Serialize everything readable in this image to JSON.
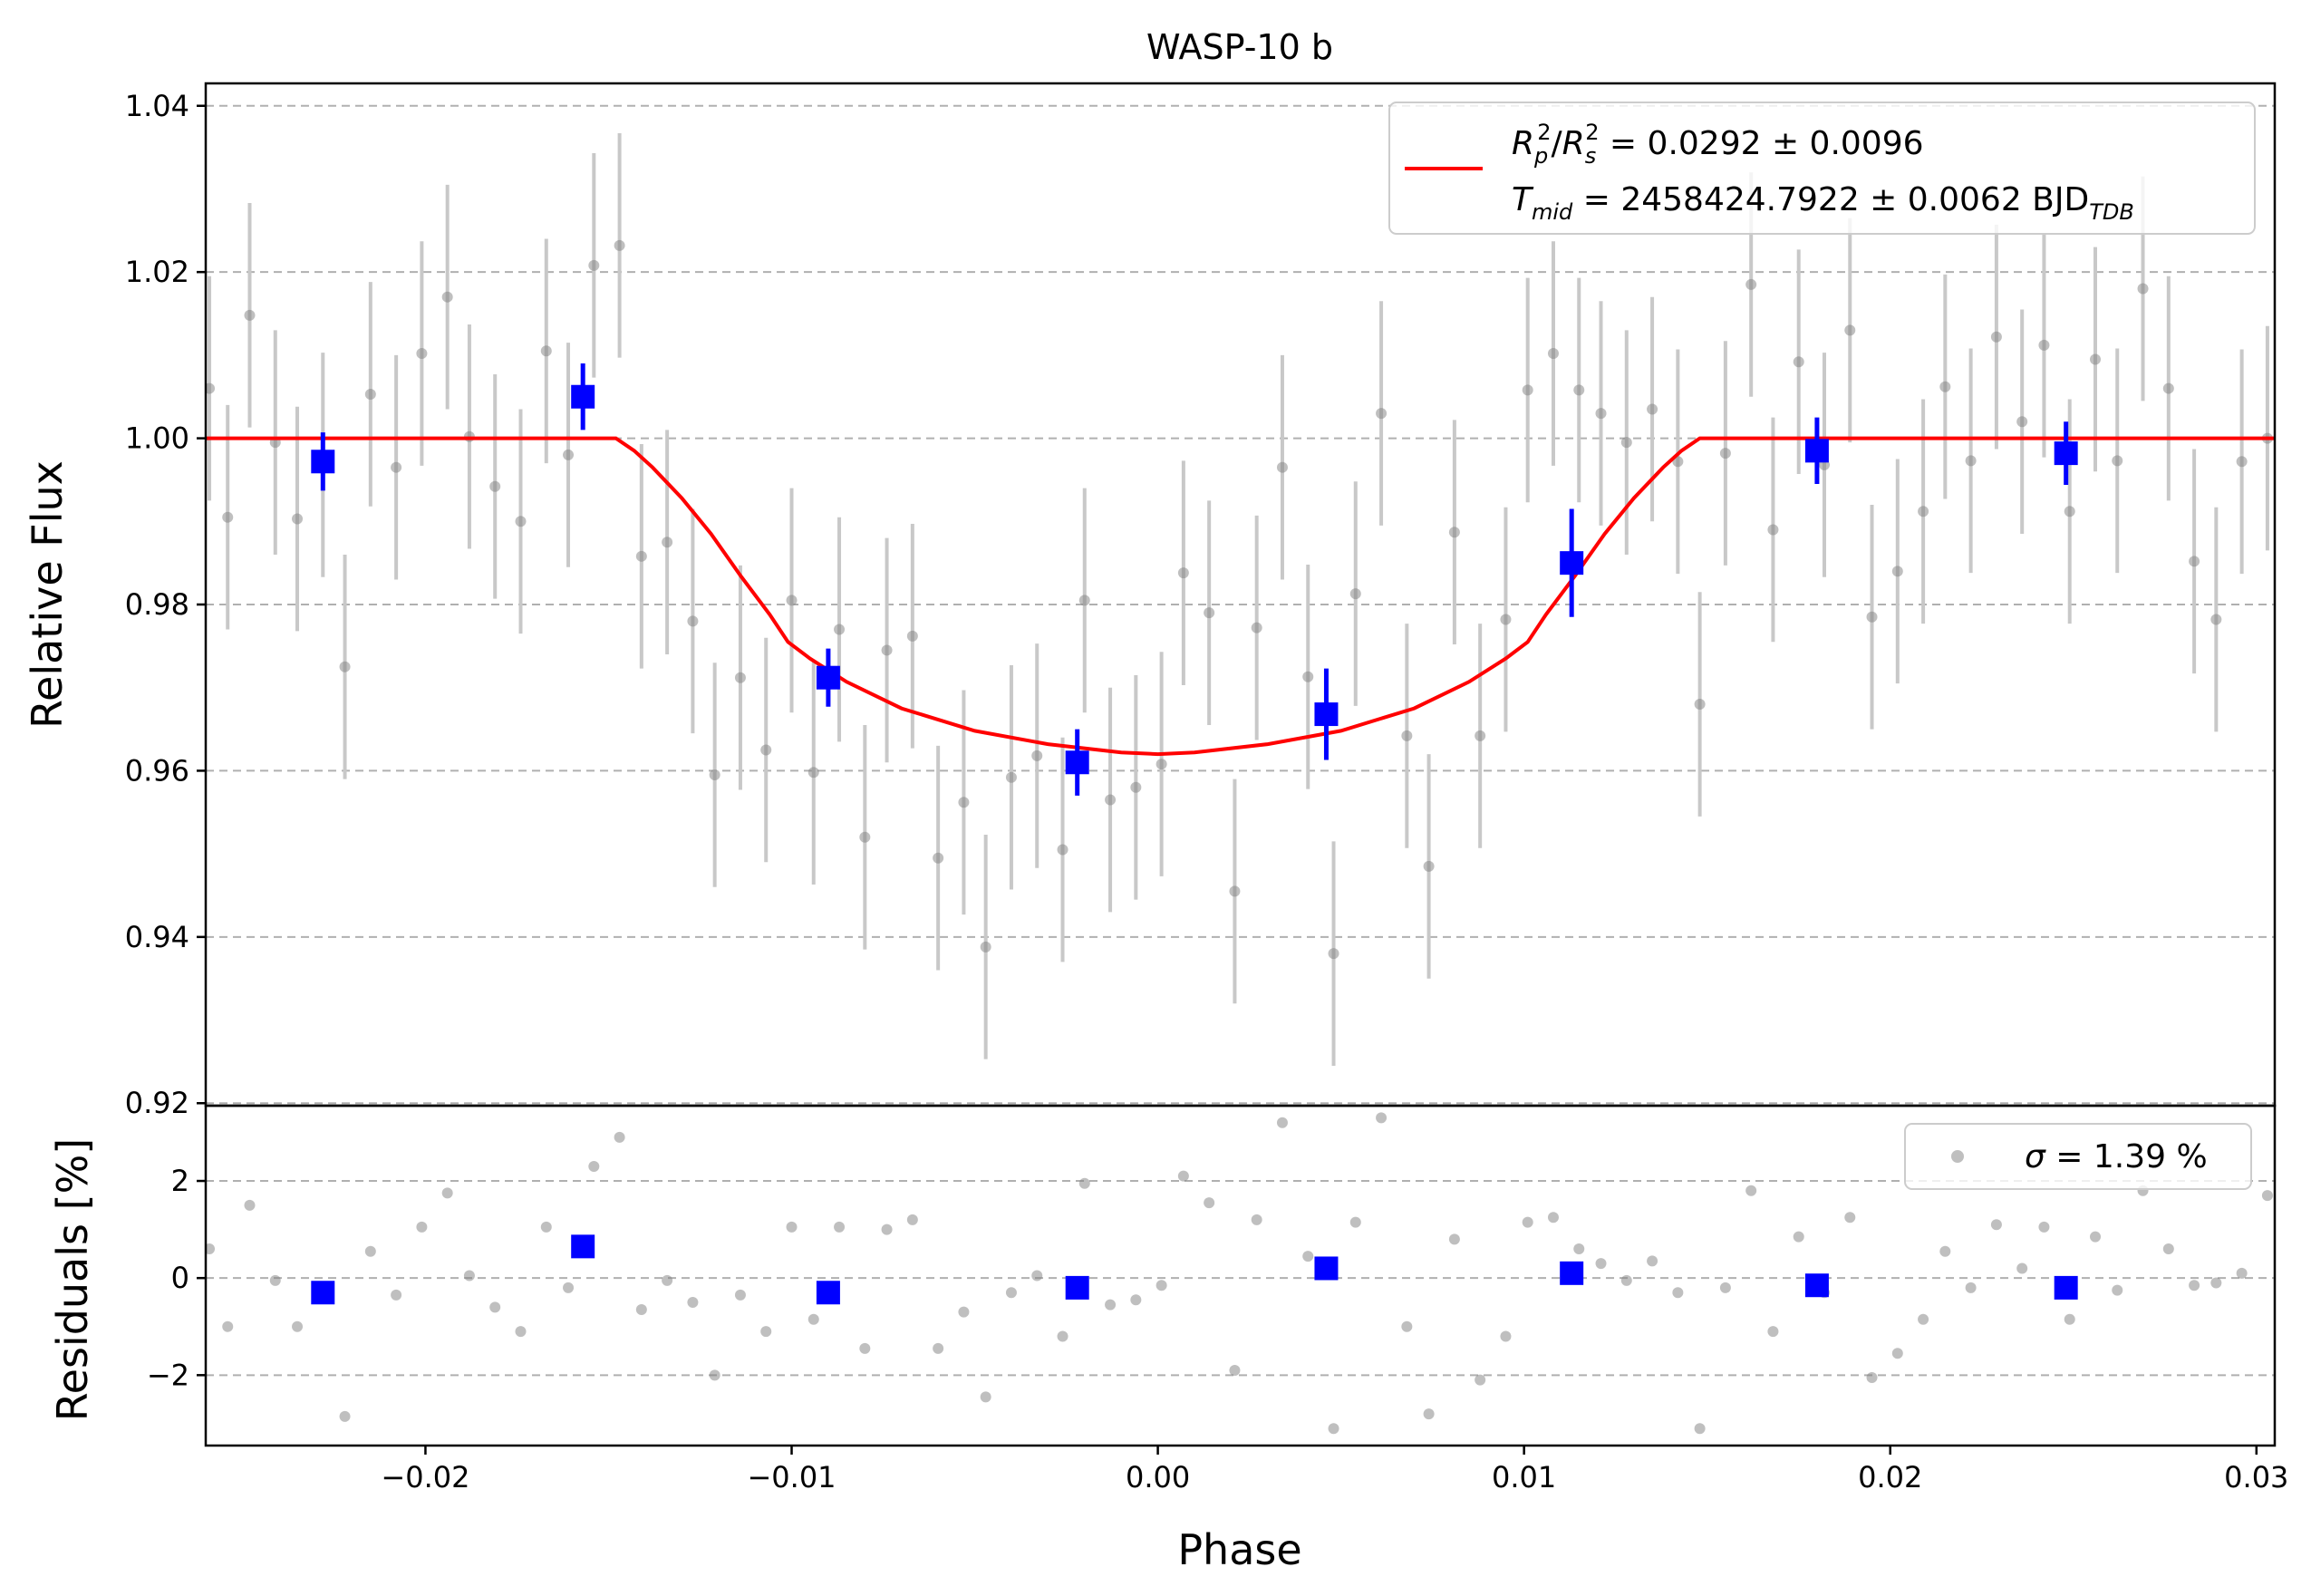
{
  "chart_data": {
    "type": "scatter",
    "title": "WASP-10 b",
    "xlabel": "Phase",
    "xlim": [
      -0.026,
      0.0305
    ],
    "x_ticks": [
      "−0.02",
      "−0.01",
      "0.00",
      "0.01",
      "0.02",
      "0.03"
    ],
    "x_tick_values": [
      -0.02,
      -0.01,
      0.0,
      0.01,
      0.02,
      0.03
    ],
    "grid": "horizontal dashed",
    "colors": {
      "raw": "#808080",
      "errorbar_raw": "#c8c8c8",
      "binned": "#0000ff",
      "model": "#ff0000"
    },
    "panels": {
      "flux": {
        "ylabel": "Relative Flux",
        "ylim": [
          0.9197,
          1.0427
        ],
        "y_ticks": [
          "0.92",
          "0.94",
          "0.96",
          "0.98",
          "1.00",
          "1.02",
          "1.04"
        ],
        "y_tick_values": [
          0.92,
          0.94,
          0.96,
          0.98,
          1.0,
          1.02,
          1.04
        ],
        "legend_position": "top-right",
        "legend": {
          "line1": {
            "r": "R",
            "rsub": "p",
            "rsup": "2",
            "slash": "/",
            "s": "R",
            "ssub": "s",
            "ssup": "2",
            "rest": " = 0.0292 ± 0.0096"
          },
          "line2": {
            "t": "T",
            "tsub": "mid",
            "rest": " = 2458424.7922 ± 0.0062 BJD",
            "bjdsub": "TDB"
          }
        },
        "model": {
          "name": "transit model",
          "rp2_rs2": 0.0292,
          "rp2_rs2_err": 0.0096,
          "tmid": "2458424.7922",
          "tmid_err": 0.0062,
          "baseline": 1.0,
          "min_flux": 0.962,
          "points": [
            [
              -0.026,
              1.0
            ],
            [
              -0.0148,
              1.0
            ],
            [
              -0.0143,
              0.9985
            ],
            [
              -0.0138,
              0.9965
            ],
            [
              -0.013,
              0.9928
            ],
            [
              -0.0122,
              0.9885
            ],
            [
              -0.0114,
              0.9835
            ],
            [
              -0.0106,
              0.9788
            ],
            [
              -0.0101,
              0.9755
            ],
            [
              -0.0095,
              0.9735
            ],
            [
              -0.0085,
              0.9707
            ],
            [
              -0.007,
              0.9675
            ],
            [
              -0.005,
              0.9648
            ],
            [
              -0.003,
              0.9632
            ],
            [
              -0.001,
              0.9622
            ],
            [
              0.0,
              0.962
            ],
            [
              0.001,
              0.9622
            ],
            [
              0.003,
              0.9632
            ],
            [
              0.005,
              0.9648
            ],
            [
              0.007,
              0.9675
            ],
            [
              0.0085,
              0.9707
            ],
            [
              0.0095,
              0.9735
            ],
            [
              0.0101,
              0.9755
            ],
            [
              0.0106,
              0.9788
            ],
            [
              0.0114,
              0.9835
            ],
            [
              0.0122,
              0.9885
            ],
            [
              0.013,
              0.9928
            ],
            [
              0.0138,
              0.9965
            ],
            [
              0.0143,
              0.9985
            ],
            [
              0.0148,
              1.0
            ],
            [
              0.0305,
              1.0
            ]
          ]
        },
        "raw": {
          "x": [
            -0.0259,
            -0.0254,
            -0.0248,
            -0.0241,
            -0.0235,
            -0.0228,
            -0.0222,
            -0.0215,
            -0.0208,
            -0.0201,
            -0.0194,
            -0.0188,
            -0.0181,
            -0.0174,
            -0.0167,
            -0.0161,
            -0.0154,
            -0.0147,
            -0.0141,
            -0.0134,
            -0.0127,
            -0.0121,
            -0.0114,
            -0.0107,
            -0.01,
            -0.0094,
            -0.0087,
            -0.008,
            -0.0074,
            -0.0067,
            -0.006,
            -0.0053,
            -0.0047,
            -0.004,
            -0.0033,
            -0.0026,
            -0.002,
            -0.0013,
            -0.0006,
            0.0001,
            0.0007,
            0.0014,
            0.0021,
            0.0027,
            0.0034,
            0.0041,
            0.0048,
            0.0054,
            0.0061,
            0.0068,
            0.0074,
            0.0081,
            0.0088,
            0.0095,
            0.0101,
            0.0108,
            0.0115,
            0.0121,
            0.0128,
            0.0135,
            0.0142,
            0.0148,
            0.0155,
            0.0162,
            0.0168,
            0.0175,
            0.0182,
            0.0189,
            0.0195,
            0.0202,
            0.0209,
            0.0215,
            0.0222,
            0.0229,
            0.0236,
            0.0242,
            0.0249,
            0.0256,
            0.0262,
            0.0269,
            0.0276,
            0.0283,
            0.0289,
            0.0296,
            0.0303
          ],
          "flux": [
            1.006,
            0.9905,
            1.0148,
            0.9995,
            0.9903,
            0.9968,
            0.9725,
            1.0053,
            0.9965,
            1.0102,
            1.017,
            1.0002,
            0.9942,
            0.99,
            1.0105,
            0.998,
            1.0208,
            1.0232,
            0.9858,
            0.9875,
            0.978,
            0.9595,
            0.9712,
            0.9625,
            0.9805,
            0.9598,
            0.977,
            0.952,
            0.9745,
            0.9762,
            0.9495,
            0.9562,
            0.9388,
            0.9592,
            0.9618,
            0.9505,
            0.9805,
            0.9565,
            0.958,
            0.9608,
            0.9838,
            0.979,
            0.9455,
            0.9772,
            0.9965,
            0.9713,
            0.938,
            0.9813,
            1.003,
            0.9642,
            0.9485,
            0.9887,
            0.9642,
            0.9782,
            1.0058,
            1.0102,
            1.0058,
            1.003,
            0.9995,
            1.0035,
            0.9972,
            0.968,
            0.9982,
            1.0185,
            0.989,
            1.0092,
            0.9968,
            1.013,
            0.9785,
            0.984,
            0.9912,
            1.0062,
            0.9973,
            1.0122,
            1.002,
            1.0112,
            0.9912,
            1.0095,
            0.9973,
            1.018,
            1.006,
            0.9852,
            0.9782,
            0.9972,
            1.0
          ],
          "residual_pct": [
            0.6,
            -1.0,
            1.5,
            -0.05,
            -1.0,
            -0.35,
            -2.85,
            0.55,
            -0.35,
            1.05,
            1.75,
            0.05,
            -0.6,
            -1.1,
            1.05,
            -0.2,
            2.3,
            2.9,
            -0.65,
            -0.05,
            -0.5,
            -2.0,
            -0.35,
            -1.1,
            1.05,
            -0.85,
            1.05,
            -1.45,
            1.0,
            1.2,
            -1.45,
            -0.7,
            -2.45,
            -0.3,
            0.05,
            -1.2,
            1.95,
            -0.55,
            -0.45,
            -0.15,
            2.1,
            1.55,
            -1.9,
            1.2,
            3.2,
            0.45,
            -3.1,
            1.15,
            3.3,
            -1.0,
            -2.8,
            0.8,
            -2.1,
            -1.2,
            1.15,
            1.25,
            0.6,
            0.3,
            -0.05,
            0.35,
            -0.3,
            -3.1,
            -0.2,
            1.8,
            -1.1,
            0.85,
            -0.3,
            1.25,
            -2.05,
            -1.55,
            -0.85,
            0.55,
            -0.2,
            1.1,
            0.2,
            1.05,
            -0.85,
            0.85,
            -0.25,
            1.8,
            0.6,
            -0.15,
            -0.1,
            0.1,
            1.7
          ],
          "err": 0.0135
        },
        "binned": {
          "x": [
            -0.0228,
            -0.0157,
            -0.009,
            -0.0022,
            0.0046,
            0.0113,
            0.018,
            0.0248
          ],
          "flux": [
            0.9972,
            1.005,
            0.9712,
            0.961,
            0.9668,
            0.985,
            0.9985,
            0.9982
          ],
          "err": [
            0.0035,
            0.004,
            0.0035,
            0.004,
            0.0055,
            0.0065,
            0.004,
            0.0038
          ]
        }
      },
      "residuals": {
        "ylabel": "Residuals [%]",
        "ylim": [
          -3.45,
          3.55
        ],
        "y_ticks": [
          "−2",
          "0",
          "2"
        ],
        "y_tick_values": [
          -2,
          0,
          2
        ],
        "legend_position": "top-right",
        "legend": {
          "sigma": "σ",
          "rest": " = 1.39 %"
        },
        "binned_residual_pct": [
          -0.3,
          0.65,
          -0.3,
          -0.2,
          0.2,
          0.1,
          -0.15,
          -0.2
        ]
      }
    }
  }
}
